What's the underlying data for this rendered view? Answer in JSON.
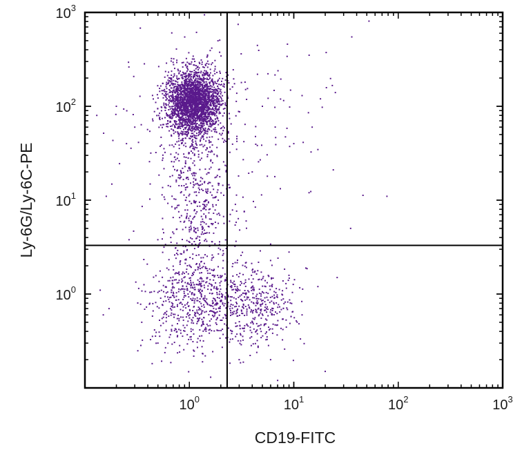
{
  "chart_data": {
    "type": "scatter",
    "title": "",
    "xlabel": "CD19-FITC",
    "ylabel": "Ly-6G/Ly-6C-PE",
    "x_scale": "log",
    "y_scale": "log",
    "xlim": [
      0.1,
      1000
    ],
    "ylim": [
      0.1,
      1000
    ],
    "grid": false,
    "legend": "none",
    "point_color": "#5a1a8c",
    "frame_color": "#000000",
    "x_ticks": [
      {
        "value": 1,
        "base": "10",
        "exp": "0"
      },
      {
        "value": 10,
        "base": "10",
        "exp": "1"
      },
      {
        "value": 100,
        "base": "10",
        "exp": "2"
      },
      {
        "value": 1000,
        "base": "10",
        "exp": "3"
      }
    ],
    "y_ticks": [
      {
        "value": 1,
        "base": "10",
        "exp": "0"
      },
      {
        "value": 10,
        "base": "10",
        "exp": "1"
      },
      {
        "value": 100,
        "base": "10",
        "exp": "2"
      },
      {
        "value": 1000,
        "base": "10",
        "exp": "3"
      }
    ],
    "quadrant_gates": {
      "x": 2.3,
      "y": 3.3
    },
    "populations": [
      {
        "label": "",
        "center": [
          1.1,
          110
        ],
        "spread_log": [
          0.13,
          0.17
        ],
        "count": 2500
      },
      {
        "label": "",
        "center": [
          1.2,
          12
        ],
        "spread_log": [
          0.16,
          0.55
        ],
        "count": 550
      },
      {
        "label": "",
        "center": [
          1.05,
          0.85
        ],
        "spread_log": [
          0.22,
          0.26
        ],
        "count": 550
      },
      {
        "label": "",
        "center": [
          4.2,
          0.75
        ],
        "spread_log": [
          0.2,
          0.2
        ],
        "count": 420
      },
      {
        "label": "",
        "center": [
          2.2,
          60
        ],
        "spread_log": [
          0.55,
          0.55
        ],
        "count": 160
      }
    ],
    "sparse_points": [
      [
        12,
        130
      ],
      [
        18,
        120
      ],
      [
        25,
        140
      ],
      [
        8,
        115
      ],
      [
        5,
        100
      ],
      [
        15,
        60
      ],
      [
        10,
        40
      ],
      [
        78,
        11
      ],
      [
        35,
        5
      ],
      [
        14,
        12
      ],
      [
        20,
        0.15
      ],
      [
        6,
        0.2
      ],
      [
        0.15,
        0.6
      ],
      [
        0.14,
        1.1
      ],
      [
        0.17,
        0.7
      ],
      [
        0.25,
        40
      ],
      [
        0.3,
        60
      ],
      [
        0.2,
        100
      ],
      [
        0.13,
        80
      ],
      [
        0.16,
        11
      ],
      [
        0.35,
        0.5
      ],
      [
        0.5,
        0.3
      ],
      [
        1.6,
        0.13
      ],
      [
        7,
        0.12
      ],
      [
        3,
        0.2
      ],
      [
        9,
        2.8
      ],
      [
        26,
        1.5
      ],
      [
        12,
        0.6
      ],
      [
        17,
        1.2
      ],
      [
        6,
        3.4
      ],
      [
        3.5,
        6
      ],
      [
        4,
        20
      ]
    ]
  }
}
